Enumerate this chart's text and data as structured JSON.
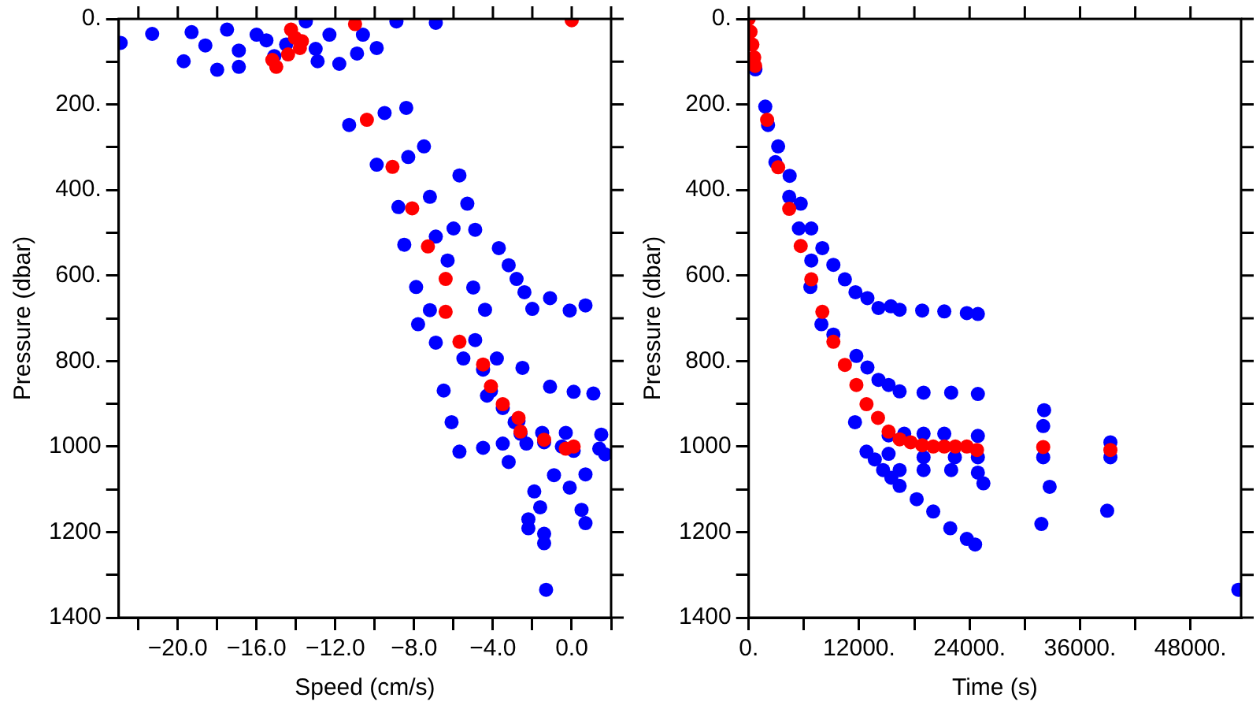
{
  "chart_data": [
    {
      "type": "scatter",
      "xlabel": "Speed (cm/s)",
      "ylabel": "Pressure (dbar)",
      "xlim": [
        -23,
        2
      ],
      "ylim": [
        1400,
        0
      ],
      "xticks": [
        {
          "value": -22,
          "label": null
        },
        {
          "value": -20,
          "label": "−20.0"
        },
        {
          "value": -18,
          "label": null
        },
        {
          "value": -16,
          "label": "−16.0"
        },
        {
          "value": -14,
          "label": null
        },
        {
          "value": -12,
          "label": "−12.0"
        },
        {
          "value": -10,
          "label": null
        },
        {
          "value": -8,
          "label": "−8.0"
        },
        {
          "value": -6,
          "label": null
        },
        {
          "value": -4,
          "label": "−4.0"
        },
        {
          "value": -2,
          "label": null
        },
        {
          "value": 0,
          "label": "0.0"
        },
        {
          "value": 2,
          "label": null
        }
      ],
      "yticks": [
        {
          "value": 0,
          "label": "0."
        },
        {
          "value": 100,
          "label": null
        },
        {
          "value": 200,
          "label": "200."
        },
        {
          "value": 300,
          "label": null
        },
        {
          "value": 400,
          "label": "400."
        },
        {
          "value": 500,
          "label": null
        },
        {
          "value": 600,
          "label": "600."
        },
        {
          "value": 700,
          "label": null
        },
        {
          "value": 800,
          "label": "800."
        },
        {
          "value": 900,
          "label": null
        },
        1000,
        {
          "value": 1100,
          "label": null
        },
        1200,
        {
          "value": 1300,
          "label": null
        },
        1400
      ],
      "grid": false,
      "legend": false,
      "marker": "circle",
      "series": [
        {
          "color": "#0000ff",
          "x": [
            -22.9,
            -21.3,
            -19.3,
            -19.7,
            -18.0,
            -17.5,
            -16.9,
            -16.0,
            -15.1,
            -12.9,
            -11.8,
            -12.3,
            -10.6,
            -9.9,
            -10.9,
            -8.9,
            -6.9,
            -13.5,
            -18.6,
            -16.9,
            -14.5,
            -13.0,
            -15.5,
            -8.4,
            -11.3,
            -9.5,
            -7.5,
            -9.9,
            -8.3,
            -5.7,
            -5.3,
            -8.8,
            -7.2,
            -6.0,
            -4.9,
            -8.5,
            -6.9,
            -3.7,
            -3.2,
            -2.8,
            -2.4,
            -2.0,
            -1.1,
            -0.1,
            0.7,
            -5.0,
            -7.9,
            -6.3,
            -4.4,
            -7.2,
            -7.8,
            -6.9,
            -4.9,
            -6.5,
            -6.1,
            -5.7,
            -4.5,
            -3.2,
            -2.5,
            -1.1,
            0.1,
            1.1,
            1.5,
            1.7,
            -0.9,
            0.7,
            -0.1,
            -1.9,
            -1.6,
            0.5,
            0.7,
            -2.2,
            -2.2,
            -1.4,
            -1.4,
            -1.3,
            -5.5,
            -3.8,
            -4.3,
            -2.9,
            -1.5,
            -0.3,
            1.4,
            -2.3,
            -3.5,
            -4.5,
            -4.1,
            -3.5,
            -2.7,
            -2.6,
            -1.4,
            -0.5,
            0.1
          ],
          "values": [
            56,
            35,
            31,
            99,
            119,
            25,
            112,
            37,
            87,
            99,
            105,
            37,
            37,
            68,
            81,
            6,
            9,
            6,
            62,
            74,
            60,
            70,
            50,
            208,
            248,
            220,
            298,
            341,
            323,
            366,
            432,
            440,
            416,
            490,
            493,
            528,
            509,
            536,
            576,
            608,
            639,
            678,
            653,
            682,
            670,
            628,
            627,
            565,
            680,
            681,
            714,
            757,
            751,
            869,
            943,
            1012,
            1003,
            1036,
            816,
            860,
            872,
            876,
            972,
            1018,
            1067,
            1065,
            1096,
            1105,
            1142,
            1148,
            1179,
            1170,
            1191,
            1204,
            1226,
            1335,
            794,
            794,
            881,
            943,
            968,
            968,
            1005,
            993,
            993,
            820,
            870,
            910,
            940,
            970,
            990,
            1000,
            1010
          ]
        },
        {
          "color": "#ff0000",
          "x": [
            -14.25,
            -14.05,
            -13.7,
            -13.8,
            -14.4,
            -15.2,
            -15.0,
            -11.0,
            0,
            -10.4,
            -9.1,
            -8.1,
            -7.3,
            -6.4,
            -6.4,
            -5.7,
            -4.5,
            -4.1,
            -3.5,
            -2.7,
            -2.6,
            -1.4,
            -0.3,
            0.1
          ],
          "values": [
            25,
            44,
            52,
            68,
            83,
            96,
            112,
            12,
            3,
            236,
            346,
            443,
            532,
            608,
            685,
            755,
            808,
            859,
            901,
            933,
            965,
            984,
            1005,
            1000
          ]
        }
      ]
    },
    {
      "type": "scatter",
      "xlabel": "Time (s)",
      "ylabel": "Pressure (dbar)",
      "xlim": [
        0,
        53500
      ],
      "ylim": [
        1400,
        0
      ],
      "xticks": [
        {
          "value": 0,
          "label": "0."
        },
        {
          "value": 6000,
          "label": null
        },
        {
          "value": 12000,
          "label": "12000."
        },
        {
          "value": 18000,
          "label": null
        },
        {
          "value": 24000,
          "label": "24000."
        },
        {
          "value": 30000,
          "label": null
        },
        {
          "value": 36000,
          "label": "36000."
        },
        {
          "value": 42000,
          "label": null
        },
        {
          "value": 48000,
          "label": "48000."
        }
      ],
      "yticks": [
        {
          "value": 0,
          "label": "0."
        },
        {
          "value": 100,
          "label": null
        },
        {
          "value": 200,
          "label": "200."
        },
        {
          "value": 300,
          "label": null
        },
        {
          "value": 400,
          "label": "400."
        },
        {
          "value": 500,
          "label": null
        },
        {
          "value": 600,
          "label": "600."
        },
        {
          "value": 700,
          "label": null
        },
        {
          "value": 800,
          "label": "800."
        },
        {
          "value": 900,
          "label": null
        },
        1000,
        {
          "value": 1100,
          "label": null
        },
        1200,
        {
          "value": 1300,
          "label": null
        },
        1400
      ],
      "grid": false,
      "legend": false,
      "marker": "circle",
      "series": [
        {
          "color": "#0000ff",
          "x": [
            730,
            1800,
            2100,
            3200,
            2900,
            4450,
            4400,
            5650,
            5450,
            6800,
            6800,
            6700,
            8000,
            9200,
            10450,
            11600,
            12900,
            14100,
            15450,
            16400,
            18850,
            21250,
            23700,
            24900,
            7900,
            9200,
            11700,
            12900,
            14100,
            15200,
            16400,
            19000,
            22000,
            24900,
            11550,
            12800,
            13700,
            14600,
            15500,
            16400,
            18250,
            20050,
            21900,
            23700,
            24600,
            16400,
            19000,
            22000,
            24900,
            25500,
            15200,
            16900,
            19000,
            21250,
            24900,
            15200,
            19000,
            22400,
            24900,
            32100,
            32000,
            32000,
            32700,
            31800,
            39300,
            39300,
            38950,
            53200
          ],
          "values": [
            118,
            205,
            248,
            298,
            335,
            367,
            416,
            432,
            490,
            490,
            565,
            627,
            536,
            575,
            609,
            639,
            653,
            676,
            672,
            680,
            682,
            684,
            688,
            690,
            714,
            738,
            788,
            815,
            844,
            856,
            871,
            874,
            874,
            877,
            943,
            1012,
            1030,
            1055,
            1073,
            1092,
            1123,
            1152,
            1191,
            1216,
            1229,
            1055,
            1055,
            1055,
            1061,
            1086,
            974,
            970,
            970,
            970,
            975,
            1017,
            1025,
            1025,
            1025,
            915,
            952,
            1025,
            1094,
            1181,
            990,
            1025,
            1150,
            1335
          ]
        },
        {
          "color": "#ff0000",
          "x": [
            0,
            200,
            400,
            600,
            700,
            2000,
            3200,
            4400,
            5650,
            6800,
            8000,
            9200,
            10450,
            11700,
            12800,
            14050,
            15200,
            16400,
            17600,
            18850,
            20050,
            21250,
            22450,
            23700,
            24800,
            32000,
            39300
          ],
          "values": [
            0,
            30,
            60,
            90,
            110,
            236,
            347,
            444,
            531,
            609,
            685,
            755,
            809,
            856,
            901,
            933,
            965,
            983,
            990,
            997,
            1000,
            1000,
            1000,
            1000,
            1008,
            1001,
            1008
          ]
        }
      ]
    }
  ]
}
